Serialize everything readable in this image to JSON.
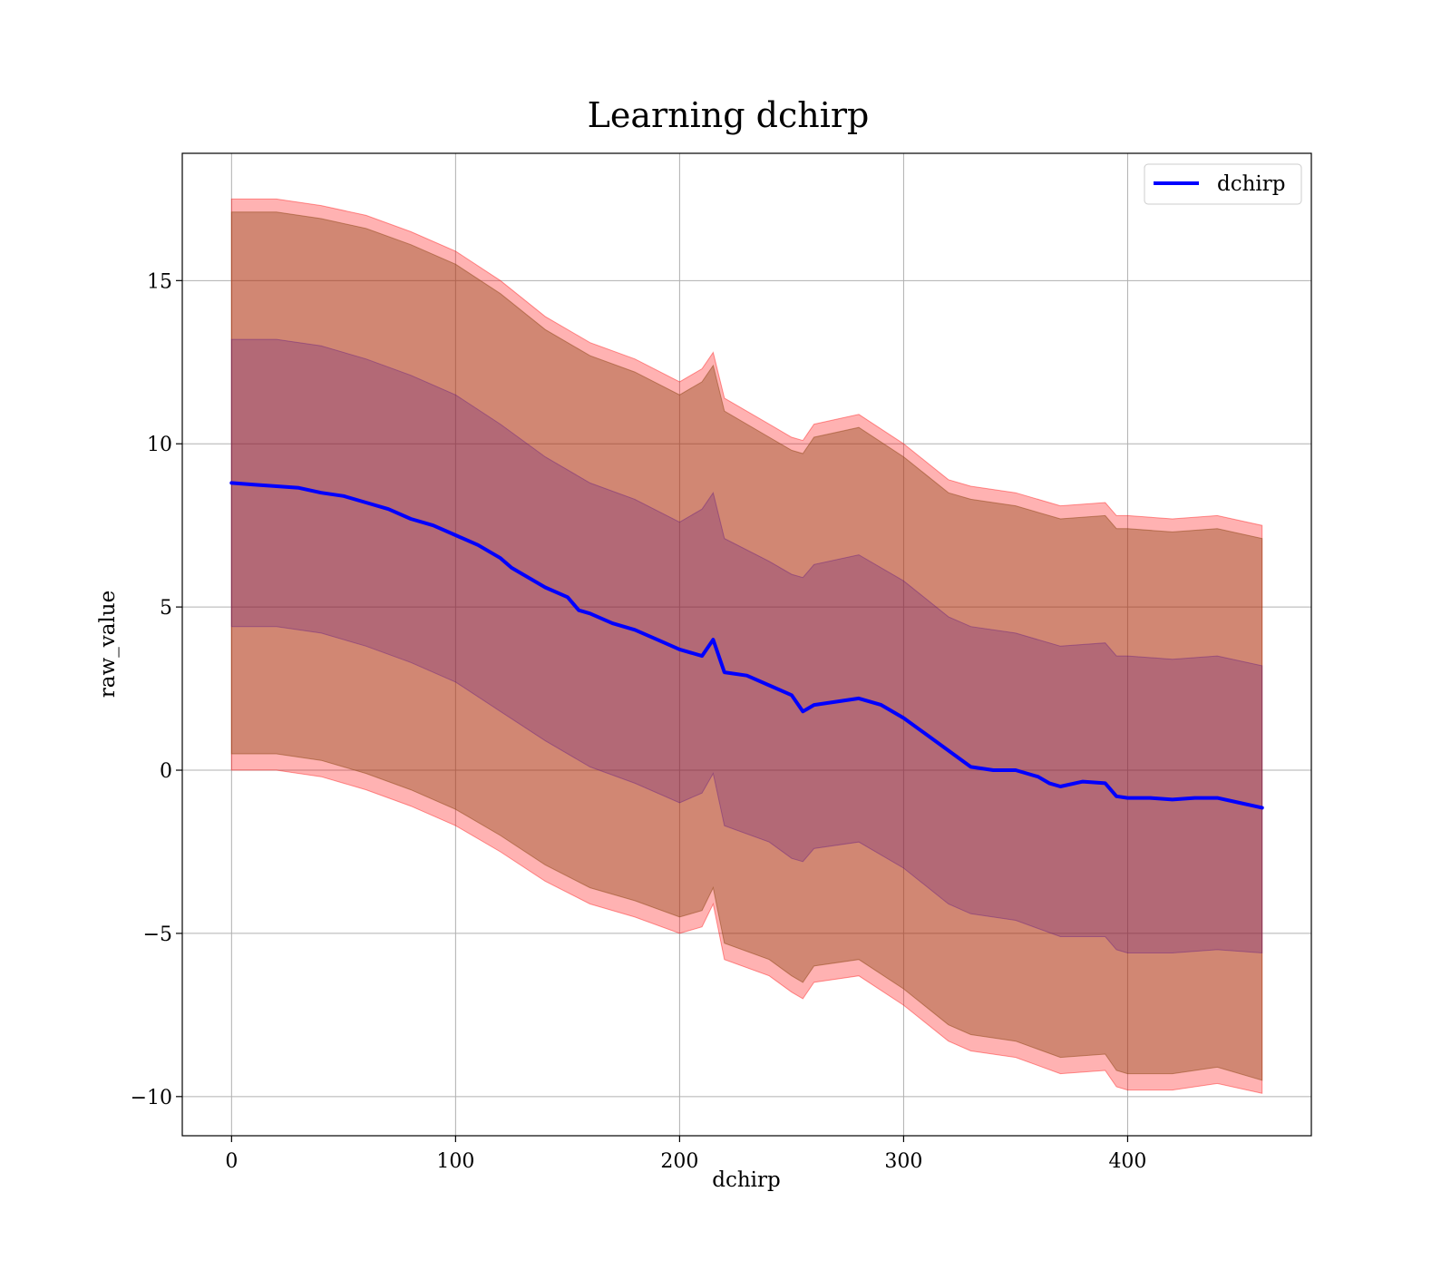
{
  "chart_data": {
    "type": "line",
    "title": "Learning dchirp",
    "xlabel": "dchirp",
    "ylabel": "raw_value",
    "xlim": [
      -22,
      482
    ],
    "ylim": [
      -11.2,
      18.9
    ],
    "xticks": [
      0,
      100,
      200,
      300,
      400
    ],
    "yticks": [
      -10,
      -5,
      0,
      5,
      10,
      15
    ],
    "xtick_labels": [
      "0",
      "100",
      "200",
      "300",
      "400"
    ],
    "ytick_labels": [
      "−10",
      "−5",
      "0",
      "5",
      "10",
      "15"
    ],
    "grid": true,
    "legend_position": "top-right",
    "colors": {
      "line": "#0000ff",
      "outer_band": "#ff0000",
      "outer_band_opacity": 0.3,
      "inner_band": "#8b4513",
      "inner_band_opacity": 0.4,
      "core_band": "#4b0082",
      "core_band_opacity": 0.22,
      "grid": "#b0b0b0"
    },
    "series": [
      {
        "name": "dchirp",
        "x": [
          0,
          10,
          20,
          30,
          40,
          50,
          60,
          70,
          80,
          90,
          100,
          110,
          120,
          125,
          130,
          140,
          150,
          155,
          160,
          170,
          180,
          190,
          200,
          210,
          215,
          220,
          230,
          240,
          250,
          255,
          260,
          270,
          280,
          290,
          300,
          310,
          320,
          330,
          340,
          350,
          360,
          365,
          370,
          380,
          390,
          395,
          400,
          410,
          420,
          430,
          440,
          450,
          460
        ],
        "y": [
          8.8,
          8.75,
          8.7,
          8.65,
          8.5,
          8.4,
          8.2,
          8.0,
          7.7,
          7.5,
          7.2,
          6.9,
          6.5,
          6.2,
          6.0,
          5.6,
          5.3,
          4.9,
          4.8,
          4.5,
          4.3,
          4.0,
          3.7,
          3.5,
          4.0,
          3.0,
          2.9,
          2.6,
          2.3,
          1.8,
          2.0,
          2.1,
          2.2,
          2.0,
          1.6,
          1.1,
          0.6,
          0.1,
          0.0,
          0.0,
          -0.2,
          -0.4,
          -0.5,
          -0.35,
          -0.4,
          -0.8,
          -0.85,
          -0.85,
          -0.9,
          -0.85,
          -0.85,
          -1.0,
          -1.15
        ]
      }
    ],
    "bands": [
      {
        "kind": "outer",
        "x": [
          0,
          20,
          40,
          60,
          80,
          100,
          120,
          140,
          160,
          180,
          200,
          210,
          215,
          220,
          240,
          250,
          255,
          260,
          280,
          300,
          320,
          330,
          350,
          370,
          390,
          395,
          400,
          420,
          440,
          460
        ],
        "upper": [
          17.5,
          17.5,
          17.3,
          17.0,
          16.5,
          15.9,
          15.0,
          13.9,
          13.1,
          12.6,
          11.9,
          12.3,
          12.8,
          11.4,
          10.6,
          10.2,
          10.1,
          10.6,
          10.9,
          10.0,
          8.9,
          8.7,
          8.5,
          8.1,
          8.2,
          7.8,
          7.8,
          7.7,
          7.8,
          7.5
        ],
        "lower": [
          0.0,
          0.0,
          -0.2,
          -0.6,
          -1.1,
          -1.7,
          -2.5,
          -3.4,
          -4.1,
          -4.5,
          -5.0,
          -4.8,
          -4.1,
          -5.8,
          -6.3,
          -6.8,
          -7.0,
          -6.5,
          -6.3,
          -7.2,
          -8.3,
          -8.6,
          -8.8,
          -9.3,
          -9.2,
          -9.7,
          -9.8,
          -9.8,
          -9.6,
          -9.9
        ]
      },
      {
        "kind": "inner",
        "x": [
          0,
          20,
          40,
          60,
          80,
          100,
          120,
          140,
          160,
          180,
          200,
          210,
          215,
          220,
          240,
          250,
          255,
          260,
          280,
          300,
          320,
          330,
          350,
          370,
          390,
          395,
          400,
          420,
          440,
          460
        ],
        "upper": [
          17.1,
          17.1,
          16.9,
          16.6,
          16.1,
          15.5,
          14.6,
          13.5,
          12.7,
          12.2,
          11.5,
          11.9,
          12.4,
          11.0,
          10.2,
          9.8,
          9.7,
          10.2,
          10.5,
          9.6,
          8.5,
          8.3,
          8.1,
          7.7,
          7.8,
          7.4,
          7.4,
          7.3,
          7.4,
          7.1
        ],
        "lower": [
          0.5,
          0.5,
          0.3,
          -0.1,
          -0.6,
          -1.2,
          -2.0,
          -2.9,
          -3.6,
          -4.0,
          -4.5,
          -4.3,
          -3.6,
          -5.3,
          -5.8,
          -6.3,
          -6.5,
          -6.0,
          -5.8,
          -6.7,
          -7.8,
          -8.1,
          -8.3,
          -8.8,
          -8.7,
          -9.2,
          -9.3,
          -9.3,
          -9.1,
          -9.5
        ]
      },
      {
        "kind": "core",
        "x": [
          0,
          20,
          40,
          60,
          80,
          100,
          120,
          140,
          160,
          180,
          200,
          210,
          215,
          220,
          240,
          250,
          255,
          260,
          280,
          300,
          320,
          330,
          350,
          370,
          390,
          395,
          400,
          420,
          440,
          460
        ],
        "upper": [
          13.2,
          13.2,
          13.0,
          12.6,
          12.1,
          11.5,
          10.6,
          9.6,
          8.8,
          8.3,
          7.6,
          8.0,
          8.5,
          7.1,
          6.4,
          6.0,
          5.9,
          6.3,
          6.6,
          5.8,
          4.7,
          4.4,
          4.2,
          3.8,
          3.9,
          3.5,
          3.5,
          3.4,
          3.5,
          3.2
        ],
        "lower": [
          4.4,
          4.4,
          4.2,
          3.8,
          3.3,
          2.7,
          1.8,
          0.9,
          0.1,
          -0.4,
          -1.0,
          -0.7,
          -0.1,
          -1.7,
          -2.2,
          -2.7,
          -2.8,
          -2.4,
          -2.2,
          -3.0,
          -4.1,
          -4.4,
          -4.6,
          -5.1,
          -5.1,
          -5.5,
          -5.6,
          -5.6,
          -5.5,
          -5.6
        ]
      }
    ]
  }
}
